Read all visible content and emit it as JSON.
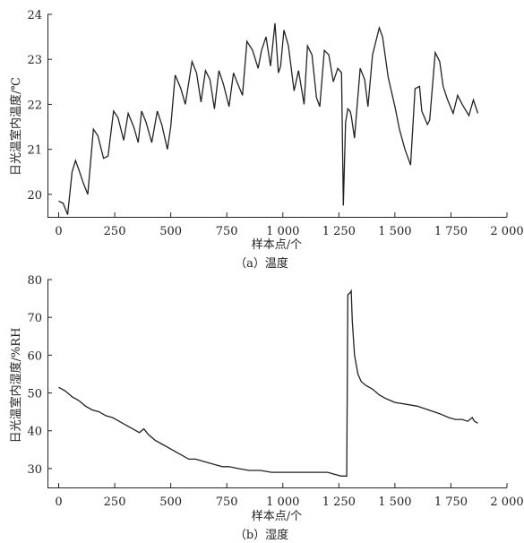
{
  "chart_data": [
    {
      "type": "line",
      "caption": "（a）温度",
      "xlabel": "样本点/个",
      "ylabel": "日光温室内温度/℃",
      "xlim": [
        -50,
        2000
      ],
      "ylim": [
        19.5,
        24
      ],
      "xticks": [
        0,
        250,
        500,
        750,
        1000,
        1250,
        1500,
        1750,
        2000
      ],
      "xtick_labels": [
        "0",
        "250",
        "500",
        "750",
        "1 000",
        "1 250",
        "1 500",
        "1 750",
        "2 000"
      ],
      "yticks": [
        20,
        21,
        22,
        23,
        24
      ],
      "ytick_labels": [
        "20",
        "21",
        "22",
        "23",
        "24"
      ],
      "grid": false,
      "series": [
        {
          "x": [
            0,
            20,
            40,
            60,
            75,
            90,
            110,
            130,
            155,
            175,
            200,
            220,
            245,
            265,
            290,
            310,
            335,
            355,
            370,
            390,
            415,
            440,
            460,
            485,
            500,
            520,
            545,
            565,
            595,
            615,
            635,
            655,
            675,
            695,
            715,
            735,
            760,
            780,
            795,
            820,
            840,
            865,
            890,
            905,
            925,
            945,
            965,
            980,
            990,
            1005,
            1025,
            1050,
            1070,
            1095,
            1110,
            1130,
            1150,
            1165,
            1185,
            1205,
            1225,
            1245,
            1262,
            1270,
            1280,
            1290,
            1300,
            1305,
            1320,
            1345,
            1365,
            1380,
            1400,
            1430,
            1445,
            1470,
            1500,
            1520,
            1545,
            1570,
            1590,
            1610,
            1620,
            1645,
            1655,
            1680,
            1700,
            1715,
            1735,
            1760,
            1780,
            1800,
            1830,
            1850,
            1870
          ],
          "y": [
            19.85,
            19.8,
            19.55,
            20.5,
            20.75,
            20.55,
            20.25,
            20.0,
            21.45,
            21.3,
            20.8,
            20.85,
            21.85,
            21.7,
            21.2,
            21.8,
            21.5,
            21.15,
            21.85,
            21.6,
            21.15,
            21.85,
            21.55,
            21.0,
            21.5,
            22.65,
            22.35,
            22.0,
            22.95,
            22.7,
            22.05,
            22.75,
            22.55,
            21.9,
            22.75,
            22.45,
            21.95,
            22.7,
            22.5,
            22.2,
            23.4,
            23.2,
            22.8,
            23.2,
            23.5,
            22.85,
            23.8,
            22.7,
            22.85,
            23.65,
            23.3,
            22.3,
            22.75,
            22.0,
            23.3,
            23.1,
            22.15,
            21.95,
            23.2,
            23.1,
            22.5,
            22.8,
            22.7,
            19.75,
            21.6,
            21.9,
            21.85,
            21.75,
            21.25,
            22.8,
            22.55,
            21.95,
            23.1,
            23.7,
            23.5,
            22.6,
            21.95,
            21.45,
            21.0,
            20.65,
            22.35,
            22.4,
            21.85,
            21.55,
            21.65,
            23.15,
            22.95,
            22.4,
            22.1,
            21.8,
            22.2,
            22.0,
            21.75,
            22.1,
            21.8
          ]
        }
      ]
    },
    {
      "type": "line",
      "caption": "（b）湿度",
      "xlabel": "样本点/个",
      "ylabel": "日光温室内湿度/%RH",
      "xlim": [
        -50,
        2000
      ],
      "ylim": [
        25,
        80
      ],
      "xticks": [
        0,
        250,
        500,
        750,
        1000,
        1250,
        1500,
        1750,
        2000
      ],
      "xtick_labels": [
        "0",
        "250",
        "500",
        "750",
        "1 000",
        "1 250",
        "1 500",
        "1 750",
        "2 000"
      ],
      "yticks": [
        30,
        40,
        50,
        60,
        70,
        80
      ],
      "ytick_labels": [
        "30",
        "40",
        "50",
        "60",
        "70",
        "80"
      ],
      "grid": false,
      "series": [
        {
          "x": [
            0,
            30,
            60,
            90,
            120,
            150,
            180,
            210,
            240,
            270,
            300,
            330,
            360,
            380,
            400,
            430,
            460,
            490,
            520,
            550,
            580,
            610,
            640,
            670,
            700,
            730,
            760,
            800,
            850,
            900,
            950,
            1000,
            1050,
            1100,
            1150,
            1200,
            1230,
            1260,
            1280,
            1285,
            1290,
            1300,
            1305,
            1310,
            1320,
            1335,
            1350,
            1370,
            1400,
            1430,
            1460,
            1500,
            1550,
            1600,
            1650,
            1700,
            1740,
            1770,
            1800,
            1825,
            1845,
            1855,
            1870
          ],
          "y": [
            51.5,
            50.5,
            49,
            48,
            46.5,
            45.5,
            45,
            44,
            43.5,
            42.5,
            41.5,
            40.5,
            39.5,
            40.5,
            39,
            37.5,
            36.5,
            35.5,
            34.5,
            33.5,
            32.5,
            32.5,
            32,
            31.5,
            31,
            30.5,
            30.5,
            30,
            29.5,
            29.5,
            29,
            29,
            29,
            29,
            29,
            29,
            28.5,
            28,
            28,
            28,
            76,
            76.5,
            77,
            69,
            60,
            55,
            53,
            52,
            51,
            49.5,
            48.5,
            47.5,
            47,
            46.5,
            45.5,
            44.5,
            43.5,
            43,
            43,
            42.5,
            43.5,
            42.5,
            42
          ]
        }
      ]
    }
  ]
}
